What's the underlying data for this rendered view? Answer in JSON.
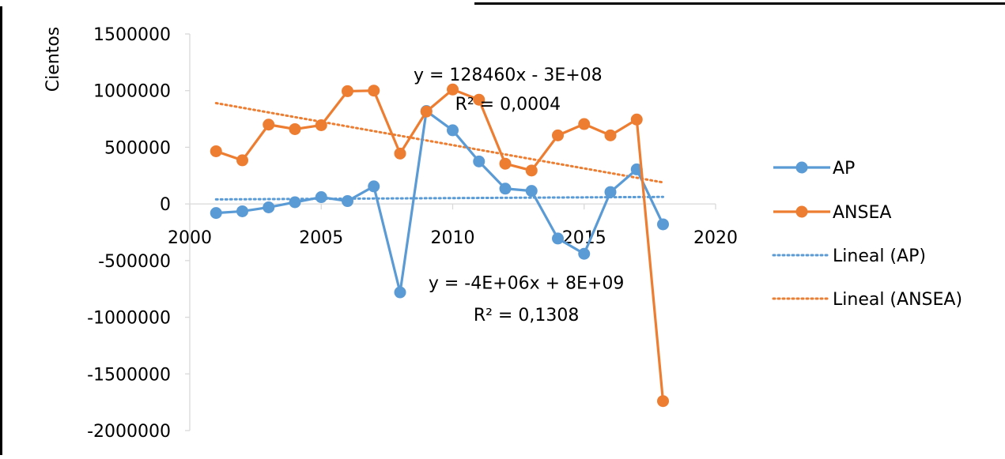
{
  "chart_data": {
    "type": "scatter",
    "title": "",
    "ylabel": "Cientos",
    "xlabel": "",
    "xlim": [
      2000,
      2020
    ],
    "ylim": [
      -2000000,
      1500000
    ],
    "x_ticks": [
      2000,
      2005,
      2010,
      2015,
      2020
    ],
    "y_ticks": [
      1500000,
      1000000,
      500000,
      0,
      -500000,
      -1000000,
      -1500000,
      -2000000
    ],
    "x_tick_labels": [
      "2000",
      "2005",
      "2010",
      "2015",
      "2020"
    ],
    "y_tick_labels": [
      "1500000",
      "1000000",
      "500000",
      "0",
      "-500000",
      "-1000000",
      "-1500000",
      "-2000000"
    ],
    "grid": false,
    "legend_position": "right",
    "series": [
      {
        "name": "AP",
        "color": "#5B9BD5",
        "x": [
          2001,
          2002,
          2003,
          2004,
          2005,
          2006,
          2007,
          2008,
          2009,
          2010,
          2011,
          2012,
          2013,
          2014,
          2015,
          2016,
          2017,
          2018
        ],
        "y": [
          -80000,
          -65000,
          -30000,
          15000,
          60000,
          25000,
          155000,
          -780000,
          820000,
          650000,
          375000,
          135000,
          115000,
          -305000,
          -440000,
          105000,
          305000,
          -180000
        ]
      },
      {
        "name": "ANSEA",
        "color": "#ED7D31",
        "x": [
          2001,
          2002,
          2003,
          2004,
          2005,
          2006,
          2007,
          2008,
          2009,
          2010,
          2011,
          2012,
          2013,
          2014,
          2015,
          2016,
          2017,
          2018
        ],
        "y": [
          465000,
          385000,
          700000,
          660000,
          695000,
          995000,
          1000000,
          445000,
          815000,
          1010000,
          920000,
          355000,
          295000,
          605000,
          705000,
          605000,
          745000,
          -1740000
        ]
      }
    ],
    "trendlines": [
      {
        "name": "Lineal (AP)",
        "color": "#5B9BD5",
        "x": [
          2001,
          2018
        ],
        "y": [
          40000,
          62000
        ]
      },
      {
        "name": "Lineal (ANSEA)",
        "color": "#ED7D31",
        "x": [
          2001,
          2018
        ],
        "y": [
          890000,
          190000
        ]
      }
    ],
    "legend": [
      "AP",
      "ANSEA",
      "Lineal (AP)",
      "Lineal (ANSEA)"
    ],
    "annotations": [
      {
        "text": "y = 128460x - 3E+08",
        "x": 2012.1,
        "y": 1090000
      },
      {
        "text": "R² = 0,0004",
        "x": 2012.1,
        "y": 830000
      },
      {
        "text": "y = -4E+06x + 8E+09",
        "x": 2012.8,
        "y": -750000
      },
      {
        "text": "R² = 0,1308",
        "x": 2012.8,
        "y": -1030000
      }
    ]
  }
}
